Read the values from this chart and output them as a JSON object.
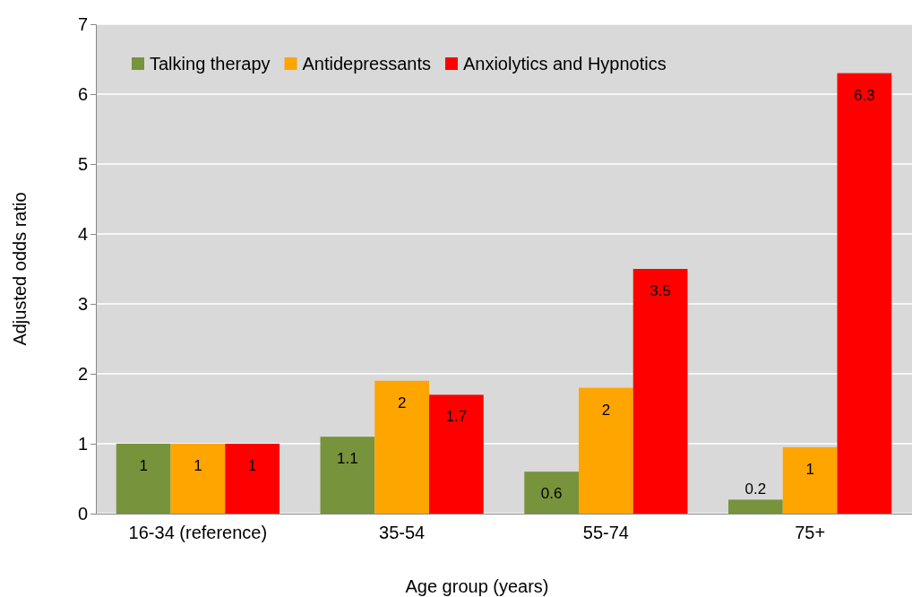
{
  "chart_data": {
    "type": "bar",
    "xlabel": "Age group (years)",
    "ylabel": "Adjusted odds ratio",
    "categories": [
      "16-34 (reference)",
      "35-54",
      "55-74",
      "75+"
    ],
    "series": [
      {
        "name": "Talking therapy",
        "color": "#77933c",
        "values": [
          1,
          1.1,
          0.6,
          0.2
        ],
        "value_labels": [
          "1",
          "1.1",
          "0.6",
          "0.2"
        ]
      },
      {
        "name": "Antidepressants",
        "color": "#ffa500",
        "values": [
          1,
          1.9,
          1.8,
          0.95
        ],
        "value_labels": [
          "1",
          "2",
          "2",
          "1"
        ]
      },
      {
        "name": "Anxiolytics and Hypnotics",
        "color": "#ff0000",
        "values": [
          1,
          1.7,
          3.5,
          6.3
        ],
        "value_labels": [
          "1",
          "1.7",
          "3.5",
          "6.3"
        ]
      }
    ],
    "ylim": [
      0,
      7
    ],
    "yticks": [
      0,
      1,
      2,
      3,
      4,
      5,
      6,
      7
    ],
    "grid": "y",
    "legend": "top"
  }
}
